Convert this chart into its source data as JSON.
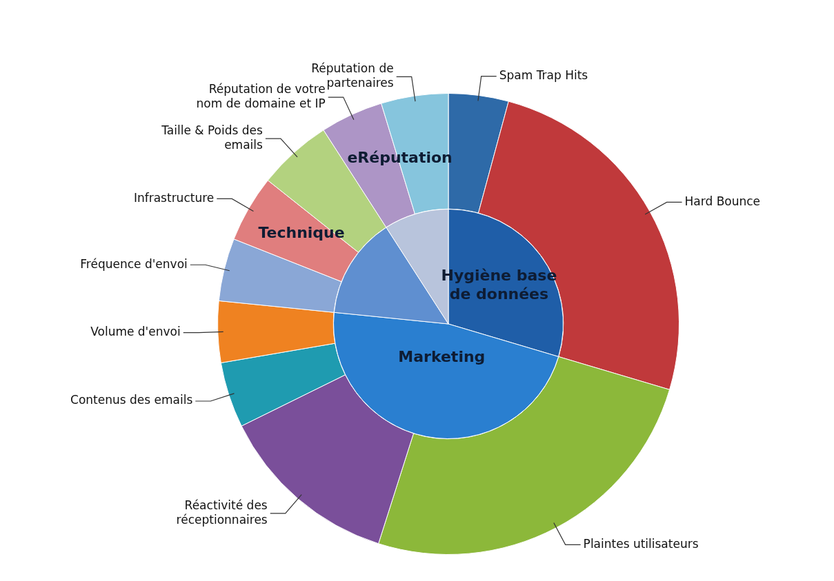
{
  "chart_data": [
    {
      "type": "pie",
      "categories": [
        "Hygiène base de données",
        "Marketing",
        "Technique",
        "eRéputation"
      ],
      "values": [
        29.6,
        47.0,
        14.3,
        9.1
      ],
      "colors": [
        "#1f5ea8",
        "#2a7fd0",
        "#5f8fd0",
        "#b8c4dc"
      ]
    },
    {
      "type": "donut",
      "categories": [
        "Spam Trap Hits",
        "Hard Bounce",
        "Plaintes utilisateurs",
        "Réactivité des réceptionnaires",
        "Contenus des emails",
        "Volume d'envoi",
        "Fréquence d'envoi",
        "Infrastructure",
        "Taille & Poids des emails",
        "Réputation de votre nom de domaine et IP",
        "Réputation de partenaires"
      ],
      "values": [
        4.2,
        25.4,
        25.3,
        12.8,
        4.6,
        4.3,
        4.4,
        4.7,
        5.2,
        4.4,
        4.7
      ],
      "colors": [
        "#2e6aa8",
        "#c0393b",
        "#8cb83a",
        "#7a4f9a",
        "#1f9bb0",
        "#ef8221",
        "#8aa7d6",
        "#e07e7e",
        "#b3d27f",
        "#ad95c6",
        "#86c5dd"
      ]
    }
  ]
}
